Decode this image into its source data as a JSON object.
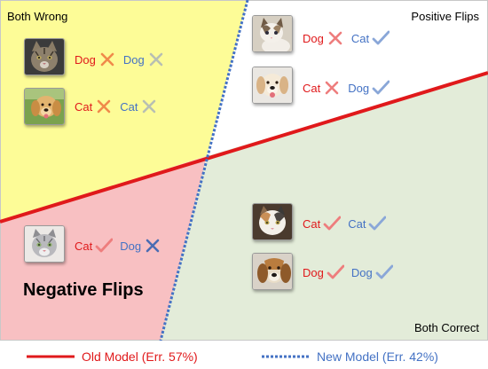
{
  "regions": {
    "both_wrong": "Both Wrong",
    "positive_flips": "Positive Flips",
    "negative_flips": "Negative Flips",
    "both_correct": "Both Correct"
  },
  "colors": {
    "both_wrong_fill": "#fdfc97",
    "positive_fill": "#ffffff",
    "negative_fill": "#f8c0c2",
    "both_correct_fill": "#e3ecd9",
    "old_line": "#e0191b",
    "new_line": "#4472c4",
    "wrong_orange": "#f08a4b",
    "wrong_gray": "#b8bfb3",
    "wrong_red": "#ee7d7d",
    "wrong_blue": "#4a6cb3",
    "check_red": "#ee7d7d",
    "check_blue": "#8aa7d8"
  },
  "samples": [
    {
      "region": "both_wrong",
      "image": "tabby-cat-photo",
      "old_pred": "Dog",
      "old_mark": "wrong-orange",
      "new_pred": "Dog",
      "new_mark": "wrong-gray"
    },
    {
      "region": "both_wrong",
      "image": "golden-puppy-photo",
      "old_pred": "Cat",
      "old_mark": "wrong-orange",
      "new_pred": "Cat",
      "new_mark": "wrong-gray"
    },
    {
      "region": "positive_flips",
      "image": "kitten-photo",
      "old_pred": "Dog",
      "old_mark": "wrong-red",
      "new_pred": "Cat",
      "new_mark": "check-blue"
    },
    {
      "region": "positive_flips",
      "image": "white-puppy-photo",
      "old_pred": "Cat",
      "old_mark": "wrong-red",
      "new_pred": "Dog",
      "new_mark": "check-blue"
    },
    {
      "region": "negative_flips",
      "image": "gray-cat-photo",
      "old_pred": "Cat",
      "old_mark": "check-red",
      "new_pred": "Dog",
      "new_mark": "wrong-blue"
    },
    {
      "region": "both_correct",
      "image": "calico-cat-photo",
      "old_pred": "Cat",
      "old_mark": "check-red",
      "new_pred": "Cat",
      "new_mark": "check-blue"
    },
    {
      "region": "both_correct",
      "image": "beagle-photo",
      "old_pred": "Dog",
      "old_mark": "check-red",
      "new_pred": "Dog",
      "new_mark": "check-blue"
    }
  ],
  "legend": {
    "old_model": "Old Model (Err. 57%)",
    "new_model": "New Model (Err. 42%)"
  }
}
